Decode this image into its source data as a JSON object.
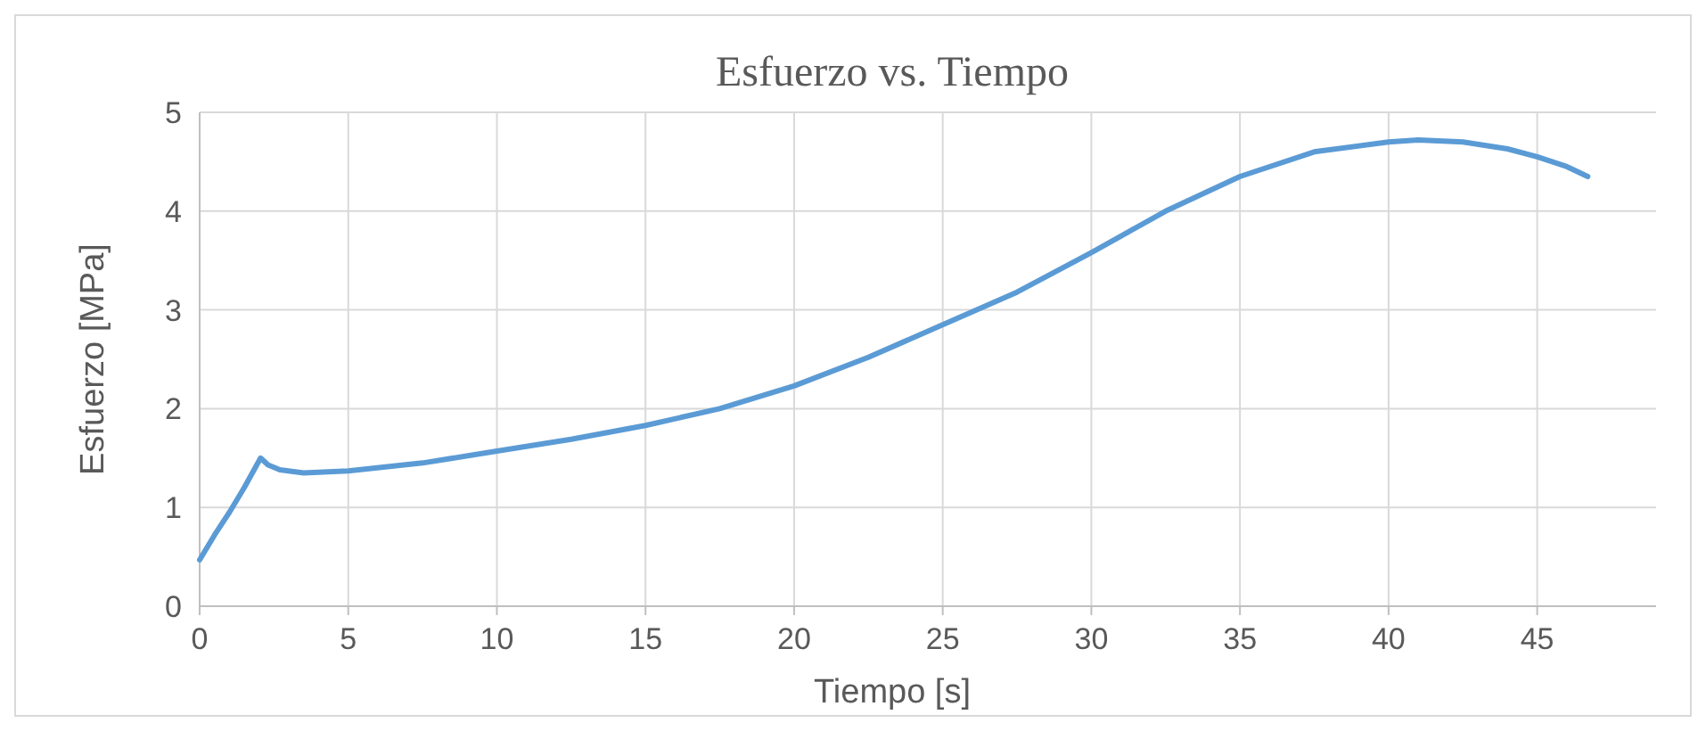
{
  "chart_data": {
    "type": "line",
    "title": "Esfuerzo vs. Tiempo",
    "xlabel": "Tiempo [s]",
    "ylabel": "Esfuerzo [MPa]",
    "x": [
      0,
      0.5,
      1,
      1.5,
      2.05,
      2.3,
      2.7,
      3.5,
      5,
      7.5,
      10,
      12.5,
      15,
      17.5,
      20,
      22.5,
      25,
      27.5,
      30,
      32.5,
      35,
      37.5,
      40,
      41,
      42.5,
      44,
      45,
      46,
      46.7
    ],
    "series": [
      {
        "color": "#5b9bd5",
        "values": [
          0.47,
          0.72,
          0.95,
          1.2,
          1.5,
          1.43,
          1.38,
          1.35,
          1.37,
          1.45,
          1.57,
          1.69,
          1.83,
          2.0,
          2.23,
          2.52,
          2.85,
          3.18,
          3.58,
          4.0,
          4.35,
          4.6,
          4.7,
          4.72,
          4.7,
          4.63,
          4.55,
          4.45,
          4.35
        ]
      }
    ],
    "xlim": [
      0,
      49
    ],
    "xticks": [
      0,
      5,
      10,
      15,
      20,
      25,
      30,
      35,
      40,
      45
    ],
    "ylim": [
      0,
      5
    ],
    "yticks": [
      0,
      1,
      2,
      3,
      4,
      5
    ],
    "grid": true,
    "marker": "none",
    "line_style": "solid"
  }
}
